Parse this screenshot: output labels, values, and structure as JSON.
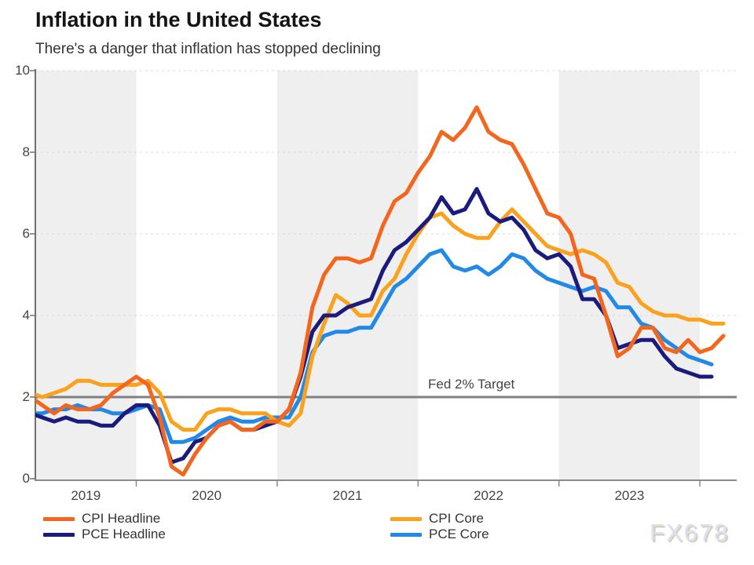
{
  "title": "Inflation in the United States",
  "subtitle": "There's a danger that inflation has stopped declining",
  "watermark": "FX678",
  "colors": {
    "background_band": "#efefef",
    "gridline": "#d8d8d8",
    "target_line": "#808080",
    "x_axis": "#8a8a8a",
    "y_axis": "#707070",
    "cpi_headline": "#f4661e",
    "cpi_core": "#faa21d",
    "pce_headline": "#1b1b7e",
    "pce_core": "#2289e6"
  },
  "legend": {
    "items": [
      {
        "label": "CPI Headline",
        "color": "#f4661e"
      },
      {
        "label": "CPI Core",
        "color": "#faa21d"
      },
      {
        "label": "PCE Headline",
        "color": "#1b1b7e"
      },
      {
        "label": "PCE Core",
        "color": "#2289e6"
      }
    ]
  },
  "chart_data": {
    "type": "line",
    "title": "Inflation in the United States",
    "subtitle": "There's a danger that inflation has stopped declining",
    "x_unit": "month",
    "x_start": "2019-04",
    "x_end": "2024-03",
    "x_tick_labels": [
      "2019",
      "2020",
      "2021",
      "2022",
      "2023"
    ],
    "y_ticks": [
      0,
      2,
      4,
      6,
      8,
      10
    ],
    "ylim": [
      0,
      10
    ],
    "grid": "horizontal-dashed",
    "background_bands": "alternating-year-shading",
    "legend_position": "bottom",
    "target_line": {
      "value": 2,
      "label": "Fed 2% Target"
    },
    "series": [
      {
        "name": "PCE Core",
        "color": "#2289e6",
        "values": [
          1.6,
          1.6,
          1.7,
          1.7,
          1.8,
          1.7,
          1.7,
          1.6,
          1.6,
          1.7,
          1.8,
          1.7,
          0.9,
          0.9,
          1.0,
          1.2,
          1.4,
          1.5,
          1.4,
          1.4,
          1.5,
          1.5,
          1.5,
          2.0,
          3.1,
          3.5,
          3.6,
          3.6,
          3.7,
          3.7,
          4.2,
          4.7,
          4.9,
          5.2,
          5.5,
          5.6,
          5.2,
          5.1,
          5.2,
          5.0,
          5.2,
          5.5,
          5.4,
          5.1,
          4.9,
          4.8,
          4.7,
          4.6,
          4.7,
          4.6,
          4.2,
          4.2,
          3.8,
          3.7,
          3.4,
          3.2,
          3.0,
          2.9,
          2.8
        ]
      },
      {
        "name": "CPI Core",
        "color": "#faa21d",
        "values": [
          2.1,
          2.0,
          2.1,
          2.2,
          2.4,
          2.4,
          2.3,
          2.3,
          2.3,
          2.3,
          2.4,
          2.1,
          1.4,
          1.2,
          1.2,
          1.6,
          1.7,
          1.7,
          1.6,
          1.6,
          1.6,
          1.4,
          1.3,
          1.6,
          3.0,
          3.8,
          4.5,
          4.3,
          4.0,
          4.0,
          4.6,
          4.9,
          5.5,
          6.0,
          6.4,
          6.5,
          6.2,
          6.0,
          5.9,
          5.9,
          6.3,
          6.6,
          6.3,
          6.0,
          5.7,
          5.6,
          5.5,
          5.6,
          5.5,
          5.3,
          4.8,
          4.7,
          4.3,
          4.1,
          4.0,
          4.0,
          3.9,
          3.9,
          3.8,
          3.8
        ]
      },
      {
        "name": "PCE Headline",
        "color": "#1b1b7e",
        "values": [
          1.6,
          1.5,
          1.4,
          1.5,
          1.4,
          1.4,
          1.3,
          1.3,
          1.6,
          1.8,
          1.8,
          1.3,
          0.4,
          0.5,
          0.9,
          1.0,
          1.3,
          1.4,
          1.2,
          1.2,
          1.3,
          1.4,
          1.7,
          2.5,
          3.6,
          4.0,
          4.0,
          4.2,
          4.3,
          4.4,
          5.1,
          5.6,
          5.8,
          6.1,
          6.4,
          6.9,
          6.5,
          6.6,
          7.1,
          6.5,
          6.3,
          6.4,
          6.1,
          5.6,
          5.4,
          5.5,
          5.2,
          4.4,
          4.4,
          4.0,
          3.2,
          3.3,
          3.4,
          3.4,
          3.0,
          2.7,
          2.6,
          2.5,
          2.5
        ]
      },
      {
        "name": "CPI Headline",
        "color": "#f4661e",
        "values": [
          2.0,
          1.8,
          1.6,
          1.8,
          1.7,
          1.7,
          1.8,
          2.1,
          2.3,
          2.5,
          2.3,
          1.5,
          0.3,
          0.1,
          0.6,
          1.0,
          1.3,
          1.4,
          1.2,
          1.2,
          1.4,
          1.4,
          1.7,
          2.6,
          4.2,
          5.0,
          5.4,
          5.4,
          5.3,
          5.4,
          6.2,
          6.8,
          7.0,
          7.5,
          7.9,
          8.5,
          8.3,
          8.6,
          9.1,
          8.5,
          8.3,
          8.2,
          7.7,
          7.1,
          6.5,
          6.4,
          6.0,
          5.0,
          4.9,
          4.0,
          3.0,
          3.2,
          3.7,
          3.7,
          3.2,
          3.1,
          3.4,
          3.1,
          3.2,
          3.5
        ]
      }
    ]
  }
}
